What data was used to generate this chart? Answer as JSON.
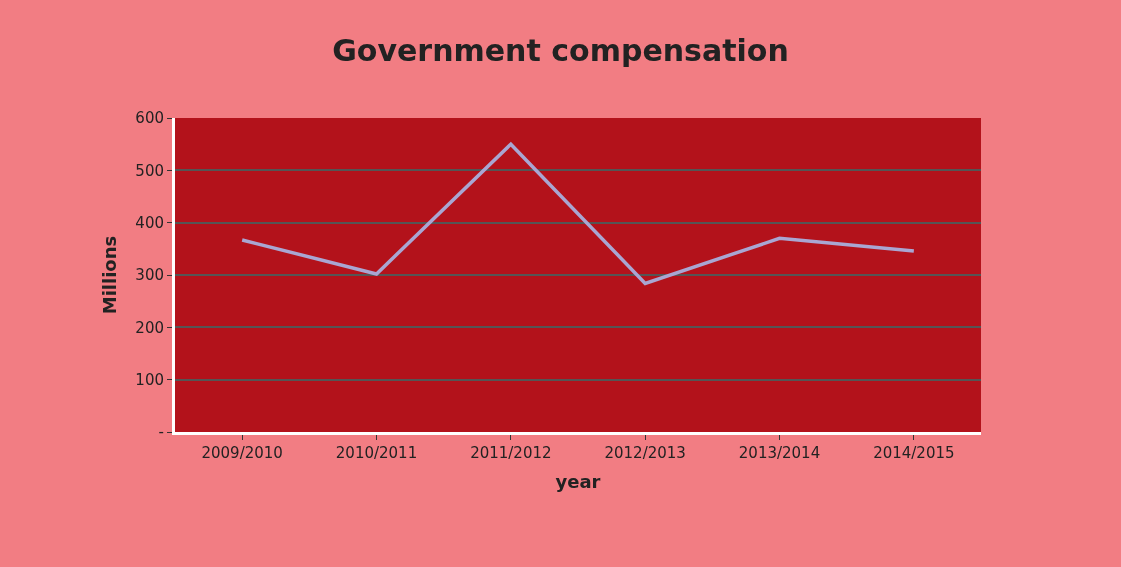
{
  "chart_data": {
    "type": "line",
    "title": "Government compensation",
    "xlabel": "year",
    "ylabel": "Millions",
    "categories": [
      "2009/2010",
      "2010/2011",
      "2011/2012",
      "2012/2013",
      "2013/2014",
      "2014/2015"
    ],
    "series": [
      {
        "color": "#a9a6d2",
        "values": [
          367,
          302,
          550,
          284,
          370,
          346
        ]
      }
    ],
    "ylim": [
      0,
      600
    ],
    "yticks": [
      {
        "value": 0,
        "label": "-"
      },
      100,
      200,
      300,
      400,
      500,
      600
    ],
    "grid": "y",
    "legend": false,
    "marker": "none",
    "line_style": "solid"
  }
}
